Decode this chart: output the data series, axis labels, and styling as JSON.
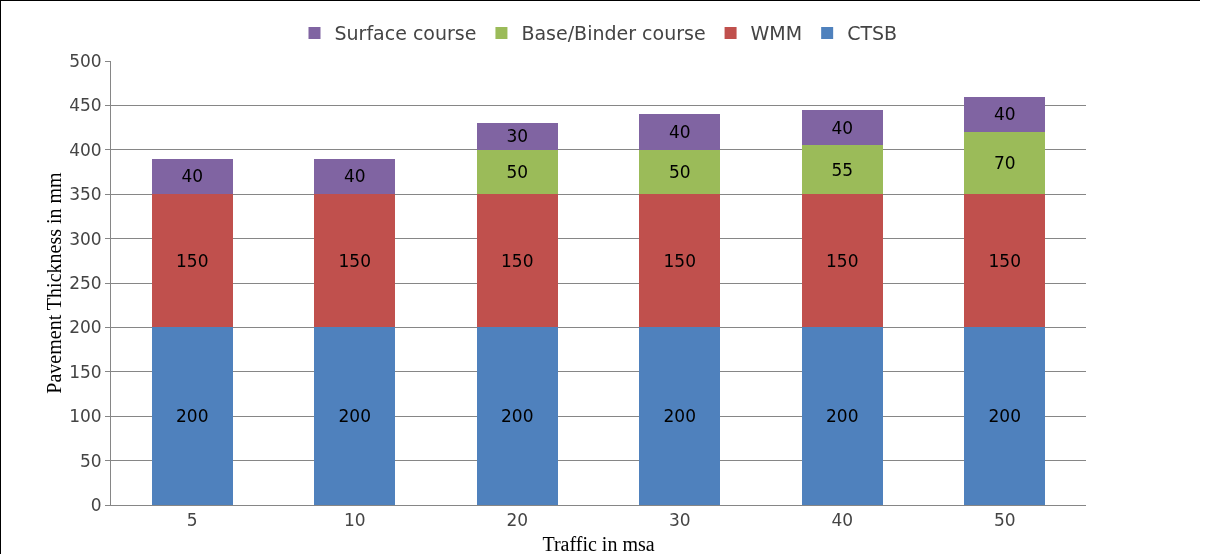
{
  "chart_data": {
    "type": "bar",
    "stacked": true,
    "xlabel": "Traffic in msa",
    "ylabel": "Pavement Thickness in mm",
    "categories": [
      "5",
      "10",
      "20",
      "30",
      "40",
      "50"
    ],
    "series": [
      {
        "name": "CTSB",
        "color": "#4f81bd",
        "values": [
          200,
          200,
          200,
          200,
          200,
          200
        ]
      },
      {
        "name": "WMM",
        "color": "#c0504d",
        "values": [
          150,
          150,
          150,
          150,
          150,
          150
        ]
      },
      {
        "name": "Base/Binder course",
        "color": "#9bbb59",
        "values": [
          null,
          null,
          50,
          50,
          55,
          70
        ]
      },
      {
        "name": "Surface course",
        "color": "#8064a2",
        "values": [
          40,
          40,
          30,
          40,
          40,
          40
        ]
      }
    ],
    "ylim": [
      0,
      500
    ],
    "yticks": [
      0,
      50,
      100,
      150,
      200,
      250,
      300,
      350,
      400,
      450,
      500
    ],
    "grid": "y",
    "legend": "top",
    "data_labels": true
  }
}
